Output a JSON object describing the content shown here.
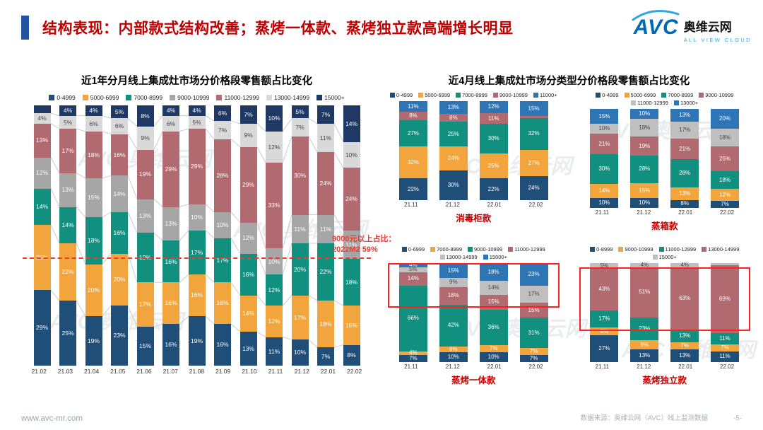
{
  "header": {
    "title": "结构表现：内部款式结构改善；蒸烤一体款、蒸烤独立款高端增长明显",
    "logo": {
      "brand": "AVC",
      "name": "奥维云网",
      "tagline": "ALL VIEW CLOUD"
    }
  },
  "right_panel": {
    "title": "近4月线上集成灶市场分类型分价格段零售额占比变化"
  },
  "watermark": {
    "text": "AVC 奥维云网"
  },
  "footer": {
    "website": "www.avc-mr.com",
    "source": "数据来源：奥维云网（AVC）线上监测数据",
    "page_number": "-5-"
  },
  "colors": {
    "title_red": "#C00000",
    "accent_blue": "#2253A3",
    "annotation_red": "#F2392C",
    "highlight_red": "#FF1F1F",
    "band_navy": "#1F4E79",
    "band_orange": "#F2A53C",
    "band_teal": "#12907F",
    "band_gray": "#A6A6A6",
    "band_mauve": "#B16A70",
    "band_light_gray": "#D9D9D9",
    "band_dark_navy": "#1F3864",
    "band_blue": "#2E75B6"
  },
  "chart_data": [
    {
      "type": "bar",
      "stacked": true,
      "unit": "%",
      "title": "近1年分月线上集成灶市场分价格段零售额占比变化",
      "categories": [
        "21.02",
        "21.03",
        "21.04",
        "21.05",
        "21.06",
        "21.07",
        "21.08",
        "21.09",
        "21.10",
        "21.11",
        "21.12",
        "22.01",
        "22.02"
      ],
      "series": [
        {
          "name": "0-4999",
          "color": "#1F4E79",
          "values": [
            29,
            25,
            19,
            23,
            15,
            16,
            19,
            16,
            13,
            11,
            10,
            7,
            8
          ]
        },
        {
          "name": "5000-6999",
          "color": "#F2A53C",
          "values": [
            25,
            22,
            20,
            20,
            17,
            16,
            16,
            16,
            14,
            12,
            17,
            18,
            15
          ]
        },
        {
          "name": "7000-8999",
          "color": "#12907F",
          "values": [
            14,
            14,
            18,
            16,
            19,
            16,
            17,
            17,
            16,
            12,
            20,
            22,
            18
          ]
        },
        {
          "name": "9000-10999",
          "color": "#A6A6A6",
          "values": [
            12,
            13,
            15,
            14,
            13,
            13,
            10,
            10,
            12,
            10,
            11,
            11,
            11
          ]
        },
        {
          "name": "11000-12999",
          "color": "#B16A70",
          "values": [
            13,
            17,
            18,
            16,
            19,
            29,
            29,
            28,
            29,
            33,
            30,
            24,
            24
          ]
        },
        {
          "name": "13000-14999",
          "color": "#D9D9D9",
          "values": [
            4,
            5,
            6,
            6,
            9,
            6,
            5,
            7,
            9,
            12,
            7,
            11,
            10
          ]
        },
        {
          "name": "15000+",
          "color": "#1F3864",
          "values": [
            3,
            4,
            4,
            5,
            8,
            4,
            4,
            6,
            7,
            10,
            5,
            7,
            14
          ]
        }
      ],
      "annotation": {
        "lines": [
          "9000元以上占比：",
          "2022M2 59%"
        ],
        "line_bottom_pct": 41
      }
    },
    {
      "type": "bar",
      "stacked": true,
      "unit": "%",
      "name": "消毒柜款",
      "categories": [
        "21.11",
        "21.12",
        "22.01",
        "22.02"
      ],
      "series": [
        {
          "name": "0-4999",
          "color": "#1F4E79",
          "values": [
            22,
            30,
            22,
            24
          ]
        },
        {
          "name": "5000-6999",
          "color": "#F2A53C",
          "values": [
            32,
            24,
            25,
            27
          ]
        },
        {
          "name": "7000-8999",
          "color": "#12907F",
          "values": [
            27,
            25,
            30,
            32
          ]
        },
        {
          "name": "9000-10999",
          "color": "#B16A70",
          "values": [
            8,
            8,
            11,
            2
          ]
        },
        {
          "name": "11000+",
          "color": "#2E75B6",
          "values": [
            11,
            13,
            12,
            15
          ]
        }
      ]
    },
    {
      "type": "bar",
      "stacked": true,
      "unit": "%",
      "name": "蒸箱款",
      "categories": [
        "21.11",
        "21.12",
        "22.01",
        "22.02"
      ],
      "series": [
        {
          "name": "0-4999",
          "color": "#1F4E79",
          "values": [
            10,
            10,
            8,
            7
          ]
        },
        {
          "name": "5000-6999",
          "color": "#F2A53C",
          "values": [
            14,
            15,
            13,
            12
          ]
        },
        {
          "name": "7000-8999",
          "color": "#12907F",
          "values": [
            30,
            28,
            28,
            18
          ]
        },
        {
          "name": "9000-10999",
          "color": "#B16A70",
          "values": [
            21,
            19,
            21,
            25
          ]
        },
        {
          "name": "11000-12999",
          "color": "#BFBFBF",
          "values": [
            10,
            18,
            17,
            18
          ]
        },
        {
          "name": "13000+",
          "color": "#2E75B6",
          "values": [
            15,
            10,
            13,
            20
          ]
        }
      ]
    },
    {
      "type": "bar",
      "stacked": true,
      "unit": "%",
      "name": "蒸烤一体款",
      "categories": [
        "21.11",
        "21.12",
        "22.01",
        "22.02"
      ],
      "series": [
        {
          "name": "0-6999",
          "color": "#1F4E79",
          "values": [
            7,
            10,
            10,
            7
          ]
        },
        {
          "name": "7000-8999",
          "color": "#F2A53C",
          "values": [
            4,
            6,
            7,
            7
          ]
        },
        {
          "name": "9000-10999",
          "color": "#12907F",
          "values": [
            66,
            42,
            36,
            31
          ]
        },
        {
          "name": "11000-12999",
          "color": "#B16A70",
          "values": [
            14,
            18,
            15,
            15
          ]
        },
        {
          "name": "13000-14999",
          "color": "#BFBFBF",
          "values": [
            5,
            9,
            14,
            17
          ]
        },
        {
          "name": "15000+",
          "color": "#2E75B6",
          "values": [
            4,
            15,
            18,
            23
          ]
        }
      ],
      "highlight": {
        "top_pct": 0,
        "height_pct": 42
      }
    },
    {
      "type": "bar",
      "stacked": true,
      "unit": "%",
      "name": "蒸烤独立款",
      "categories": [
        "21.11",
        "21.12",
        "22.01",
        "22.02"
      ],
      "series": [
        {
          "name": "0-8999",
          "color": "#1F4E79",
          "values": [
            27,
            13,
            13,
            11
          ]
        },
        {
          "name": "9000-10999",
          "color": "#F2A53C",
          "values": [
            8,
            9,
            7,
            7
          ]
        },
        {
          "name": "11000-12999",
          "color": "#12907F",
          "values": [
            17,
            23,
            13,
            11
          ]
        },
        {
          "name": "13000-14999",
          "color": "#B16A70",
          "values": [
            43,
            51,
            63,
            69
          ]
        },
        {
          "name": "15000+",
          "color": "#BFBFBF",
          "values": [
            5,
            4,
            4,
            2
          ]
        }
      ],
      "highlight": {
        "top_pct": 4,
        "height_pct": 62
      }
    }
  ]
}
